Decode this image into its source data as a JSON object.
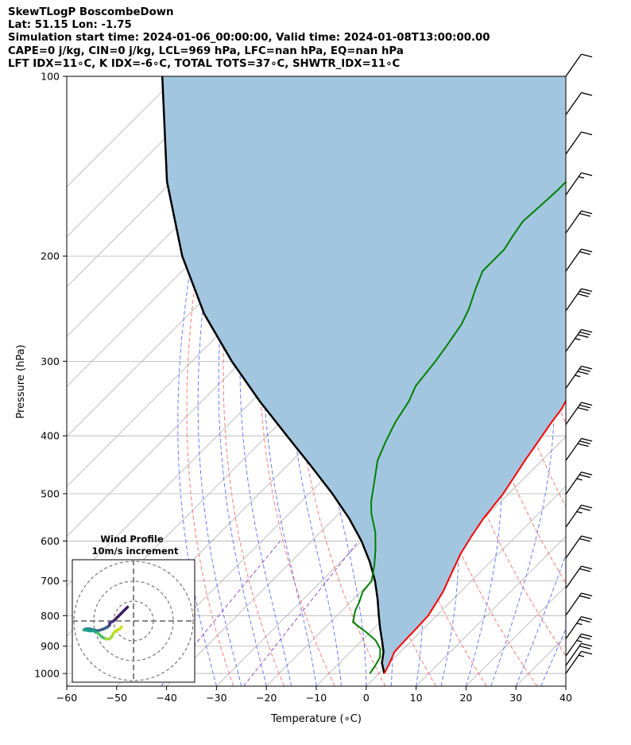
{
  "header": {
    "line1": "SkewTLogP BoscombeDown",
    "line2": "Lat: 51.15   Lon: -1.75",
    "line3": "Simulation start time: 2024-01-06_00:00:00, Valid time: 2024-01-08T13:00:00.00",
    "line4": "CAPE=0 j/kg, CIN=0 j/kg, LCL=969 hPa, LFC=nan hPa, EQ=nan hPa",
    "line5": "LFT IDX=11∘C, K IDX=-6∘C, TOTAL TOTS=37∘C, SHWTR_IDX=11∘C"
  },
  "chart_data": {
    "type": "line",
    "chart_kind": "skew-T log-P diagram",
    "xlabel": "Temperature (∘C)",
    "ylabel": "Pressure (hPa)",
    "x_ticks": [
      -60,
      -50,
      -40,
      -30,
      -20,
      -10,
      0,
      10,
      20,
      30,
      40
    ],
    "x_tick_labels": [
      "−60",
      "−50",
      "−40",
      "−30",
      "−20",
      "−10",
      "0",
      "10",
      "20",
      "30",
      "40"
    ],
    "y_ticks": [
      1000,
      900,
      800,
      700,
      600,
      500,
      400,
      300,
      200,
      100
    ],
    "y_tick_labels": [
      "1000",
      "900",
      "800",
      "700",
      "600",
      "500",
      "400",
      "300",
      "200",
      "100"
    ],
    "xlim": [
      -60,
      40
    ],
    "ylim": [
      1050,
      100
    ],
    "yscale": "log",
    "grid": true,
    "skew_degrees": 45,
    "colors": {
      "temperature": "#ff0000",
      "dewpoint": "#008000",
      "parcel": "#000000",
      "fill": "#a2c6df",
      "dry_adiabat": "#ff6b6b",
      "moist_adiabat": "#5a6cff",
      "mixing_ratio": "#8a3fc0",
      "isotherm": "#b0b0b0"
    },
    "series": [
      {
        "points": [
          [
            1.1,
            1000
          ],
          [
            0.2,
            965
          ],
          [
            -1.2,
            920
          ],
          [
            -1.4,
            880
          ],
          [
            -1.5,
            840
          ],
          [
            -1.7,
            800
          ],
          [
            -3.5,
            730
          ],
          [
            -5.5,
            680
          ],
          [
            -7.6,
            630
          ],
          [
            -8.9,
            590
          ],
          [
            -10.1,
            550
          ],
          [
            -11.1,
            500
          ],
          [
            -12.2,
            470
          ],
          [
            -13.4,
            440
          ],
          [
            -14.5,
            410
          ],
          [
            -15.7,
            380
          ],
          [
            -16.4,
            360
          ],
          [
            -17.8,
            340
          ],
          [
            -18.3,
            320
          ],
          [
            -19.0,
            300
          ],
          [
            -20.7,
            270
          ],
          [
            -21.7,
            250
          ],
          [
            -22.9,
            235
          ],
          [
            -23.8,
            220
          ],
          [
            -24.4,
            210
          ],
          [
            -24.8,
            200
          ],
          [
            -26.3,
            185
          ],
          [
            -27.4,
            175
          ],
          [
            -28.1,
            168
          ],
          [
            -30.3,
            152
          ],
          [
            -33.3,
            140
          ],
          [
            -35.4,
            130
          ],
          [
            -37.3,
            122
          ],
          [
            -39.8,
            110
          ],
          [
            -41.4,
            103
          ],
          [
            -42.2,
            100
          ]
        ]
      },
      {
        "points": [
          [
            -1.8,
            1000
          ],
          [
            -2.3,
            970
          ],
          [
            -3.0,
            940
          ],
          [
            -4.6,
            910
          ],
          [
            -7.3,
            880
          ],
          [
            -10.5,
            855
          ],
          [
            -15.5,
            820
          ],
          [
            -17.3,
            785
          ],
          [
            -18.2,
            760
          ],
          [
            -19.6,
            730
          ],
          [
            -20.0,
            700
          ],
          [
            -22.5,
            660
          ],
          [
            -25.5,
            620
          ],
          [
            -29.0,
            580
          ],
          [
            -33.5,
            540
          ],
          [
            -36.0,
            515
          ],
          [
            -37.3,
            500
          ],
          [
            -40.0,
            470
          ],
          [
            -42.9,
            440
          ],
          [
            -45.0,
            410
          ],
          [
            -47.0,
            380
          ],
          [
            -48.5,
            350
          ],
          [
            -50.2,
            330
          ],
          [
            -51.2,
            300
          ],
          [
            -52.2,
            280
          ],
          [
            -53.4,
            260
          ],
          [
            -55.0,
            245
          ],
          [
            -57.5,
            228
          ],
          [
            -59.8,
            212
          ],
          [
            -59.8,
            195
          ],
          [
            -60.8,
            185
          ],
          [
            -61.7,
            175
          ],
          [
            -61.3,
            165
          ],
          [
            -61.0,
            155
          ],
          [
            -61.0,
            145
          ],
          [
            -60.5,
            130
          ],
          [
            -60.0,
            120
          ],
          [
            -59.0,
            110
          ],
          [
            -58.1,
            100
          ]
        ]
      },
      {
        "points": [
          [
            1.1,
            1000
          ],
          [
            -1.5,
            960
          ],
          [
            -3.4,
            920
          ],
          [
            -6.0,
            880
          ],
          [
            -8.8,
            840
          ],
          [
            -11.6,
            800
          ],
          [
            -15.2,
            750
          ],
          [
            -19.3,
            700
          ],
          [
            -24.2,
            650
          ],
          [
            -30.0,
            600
          ],
          [
            -37.0,
            550
          ],
          [
            -45.3,
            500
          ],
          [
            -55.0,
            450
          ],
          [
            -66.0,
            400
          ],
          [
            -78.4,
            350
          ],
          [
            -92.0,
            300
          ],
          [
            -107.0,
            250
          ],
          [
            -123.0,
            200
          ],
          [
            -141.0,
            150
          ],
          [
            -163.0,
            100
          ]
        ]
      }
    ],
    "wind_barbs": [
      {
        "pressure": 100,
        "speed_kt": 10
      },
      {
        "pressure": 116,
        "speed_kt": 10
      },
      {
        "pressure": 135,
        "speed_kt": 10
      },
      {
        "pressure": 158,
        "speed_kt": 15
      },
      {
        "pressure": 183,
        "speed_kt": 20
      },
      {
        "pressure": 212,
        "speed_kt": 20
      },
      {
        "pressure": 247,
        "speed_kt": 30
      },
      {
        "pressure": 289,
        "speed_kt": 35
      },
      {
        "pressure": 333,
        "speed_kt": 35
      },
      {
        "pressure": 383,
        "speed_kt": 30
      },
      {
        "pressure": 440,
        "speed_kt": 30
      },
      {
        "pressure": 501,
        "speed_kt": 25
      },
      {
        "pressure": 569,
        "speed_kt": 25
      },
      {
        "pressure": 641,
        "speed_kt": 20
      },
      {
        "pressure": 720,
        "speed_kt": 20
      },
      {
        "pressure": 799,
        "speed_kt": 20
      },
      {
        "pressure": 875,
        "speed_kt": 25
      },
      {
        "pressure": 935,
        "speed_kt": 25
      },
      {
        "pressure": 970,
        "speed_kt": 20
      },
      {
        "pressure": 1000,
        "speed_kt": 15
      }
    ],
    "inset": {
      "title": "Wind Profile",
      "subtitle": "10m/s increment",
      "rings_ms": [
        10,
        20,
        30
      ],
      "hodograph_uv": [
        [
          -3,
          7
        ],
        [
          -4,
          6
        ],
        [
          -6,
          4
        ],
        [
          -8,
          2
        ],
        [
          -10,
          0
        ],
        [
          -12,
          -1
        ],
        [
          -12,
          -2
        ],
        [
          -13,
          -3
        ],
        [
          -15,
          -4
        ],
        [
          -18,
          -5
        ],
        [
          -20,
          -4.5
        ],
        [
          -22,
          -4
        ],
        [
          -24,
          -4
        ],
        [
          -25,
          -4.5
        ],
        [
          -22,
          -5
        ],
        [
          -20,
          -5
        ],
        [
          -18,
          -6
        ],
        [
          -17,
          -7
        ],
        [
          -16,
          -8
        ],
        [
          -14,
          -9
        ],
        [
          -12,
          -9
        ],
        [
          -11,
          -8
        ],
        [
          -10,
          -6
        ],
        [
          -9,
          -5
        ],
        [
          -7,
          -4
        ],
        [
          -6,
          -3
        ]
      ]
    }
  }
}
